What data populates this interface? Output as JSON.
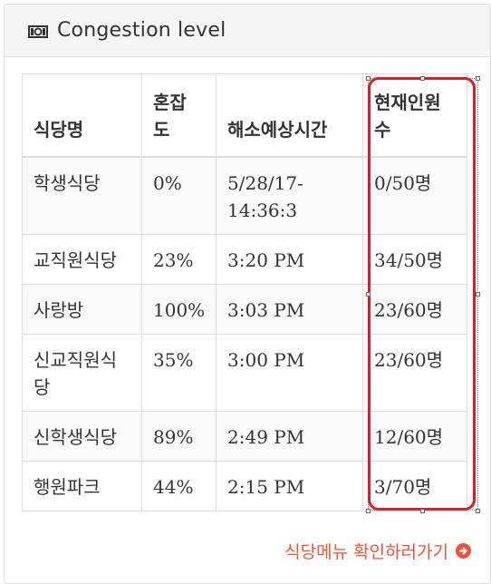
{
  "panel": {
    "title": "Congestion level",
    "icon": "money-icon"
  },
  "table": {
    "headers": [
      "식당명",
      "혼잡\n도",
      "해소예상시간",
      "현재인원\n수"
    ],
    "rows": [
      [
        "학생식당",
        "0%",
        "5/28/17-\n14:36:3",
        "0/50명"
      ],
      [
        "교직원식당",
        "23%",
        "3:20 PM",
        "34/50명"
      ],
      [
        "사랑방",
        "100%",
        "3:03 PM",
        "23/60명"
      ],
      [
        "신교직원식\n당",
        "35%",
        "3:00 PM",
        "23/60명"
      ],
      [
        "신학생식당",
        "89%",
        "2:49 PM",
        "12/60명"
      ],
      [
        "행원파크",
        "44%",
        "2:15 PM",
        "3/70명"
      ]
    ]
  },
  "footer": {
    "link_label": "식당메뉴 확인하러가기",
    "link_icon": "arrow-circle-right-icon",
    "link_color": "#e8533b"
  },
  "selection_color": "#d61f2c"
}
